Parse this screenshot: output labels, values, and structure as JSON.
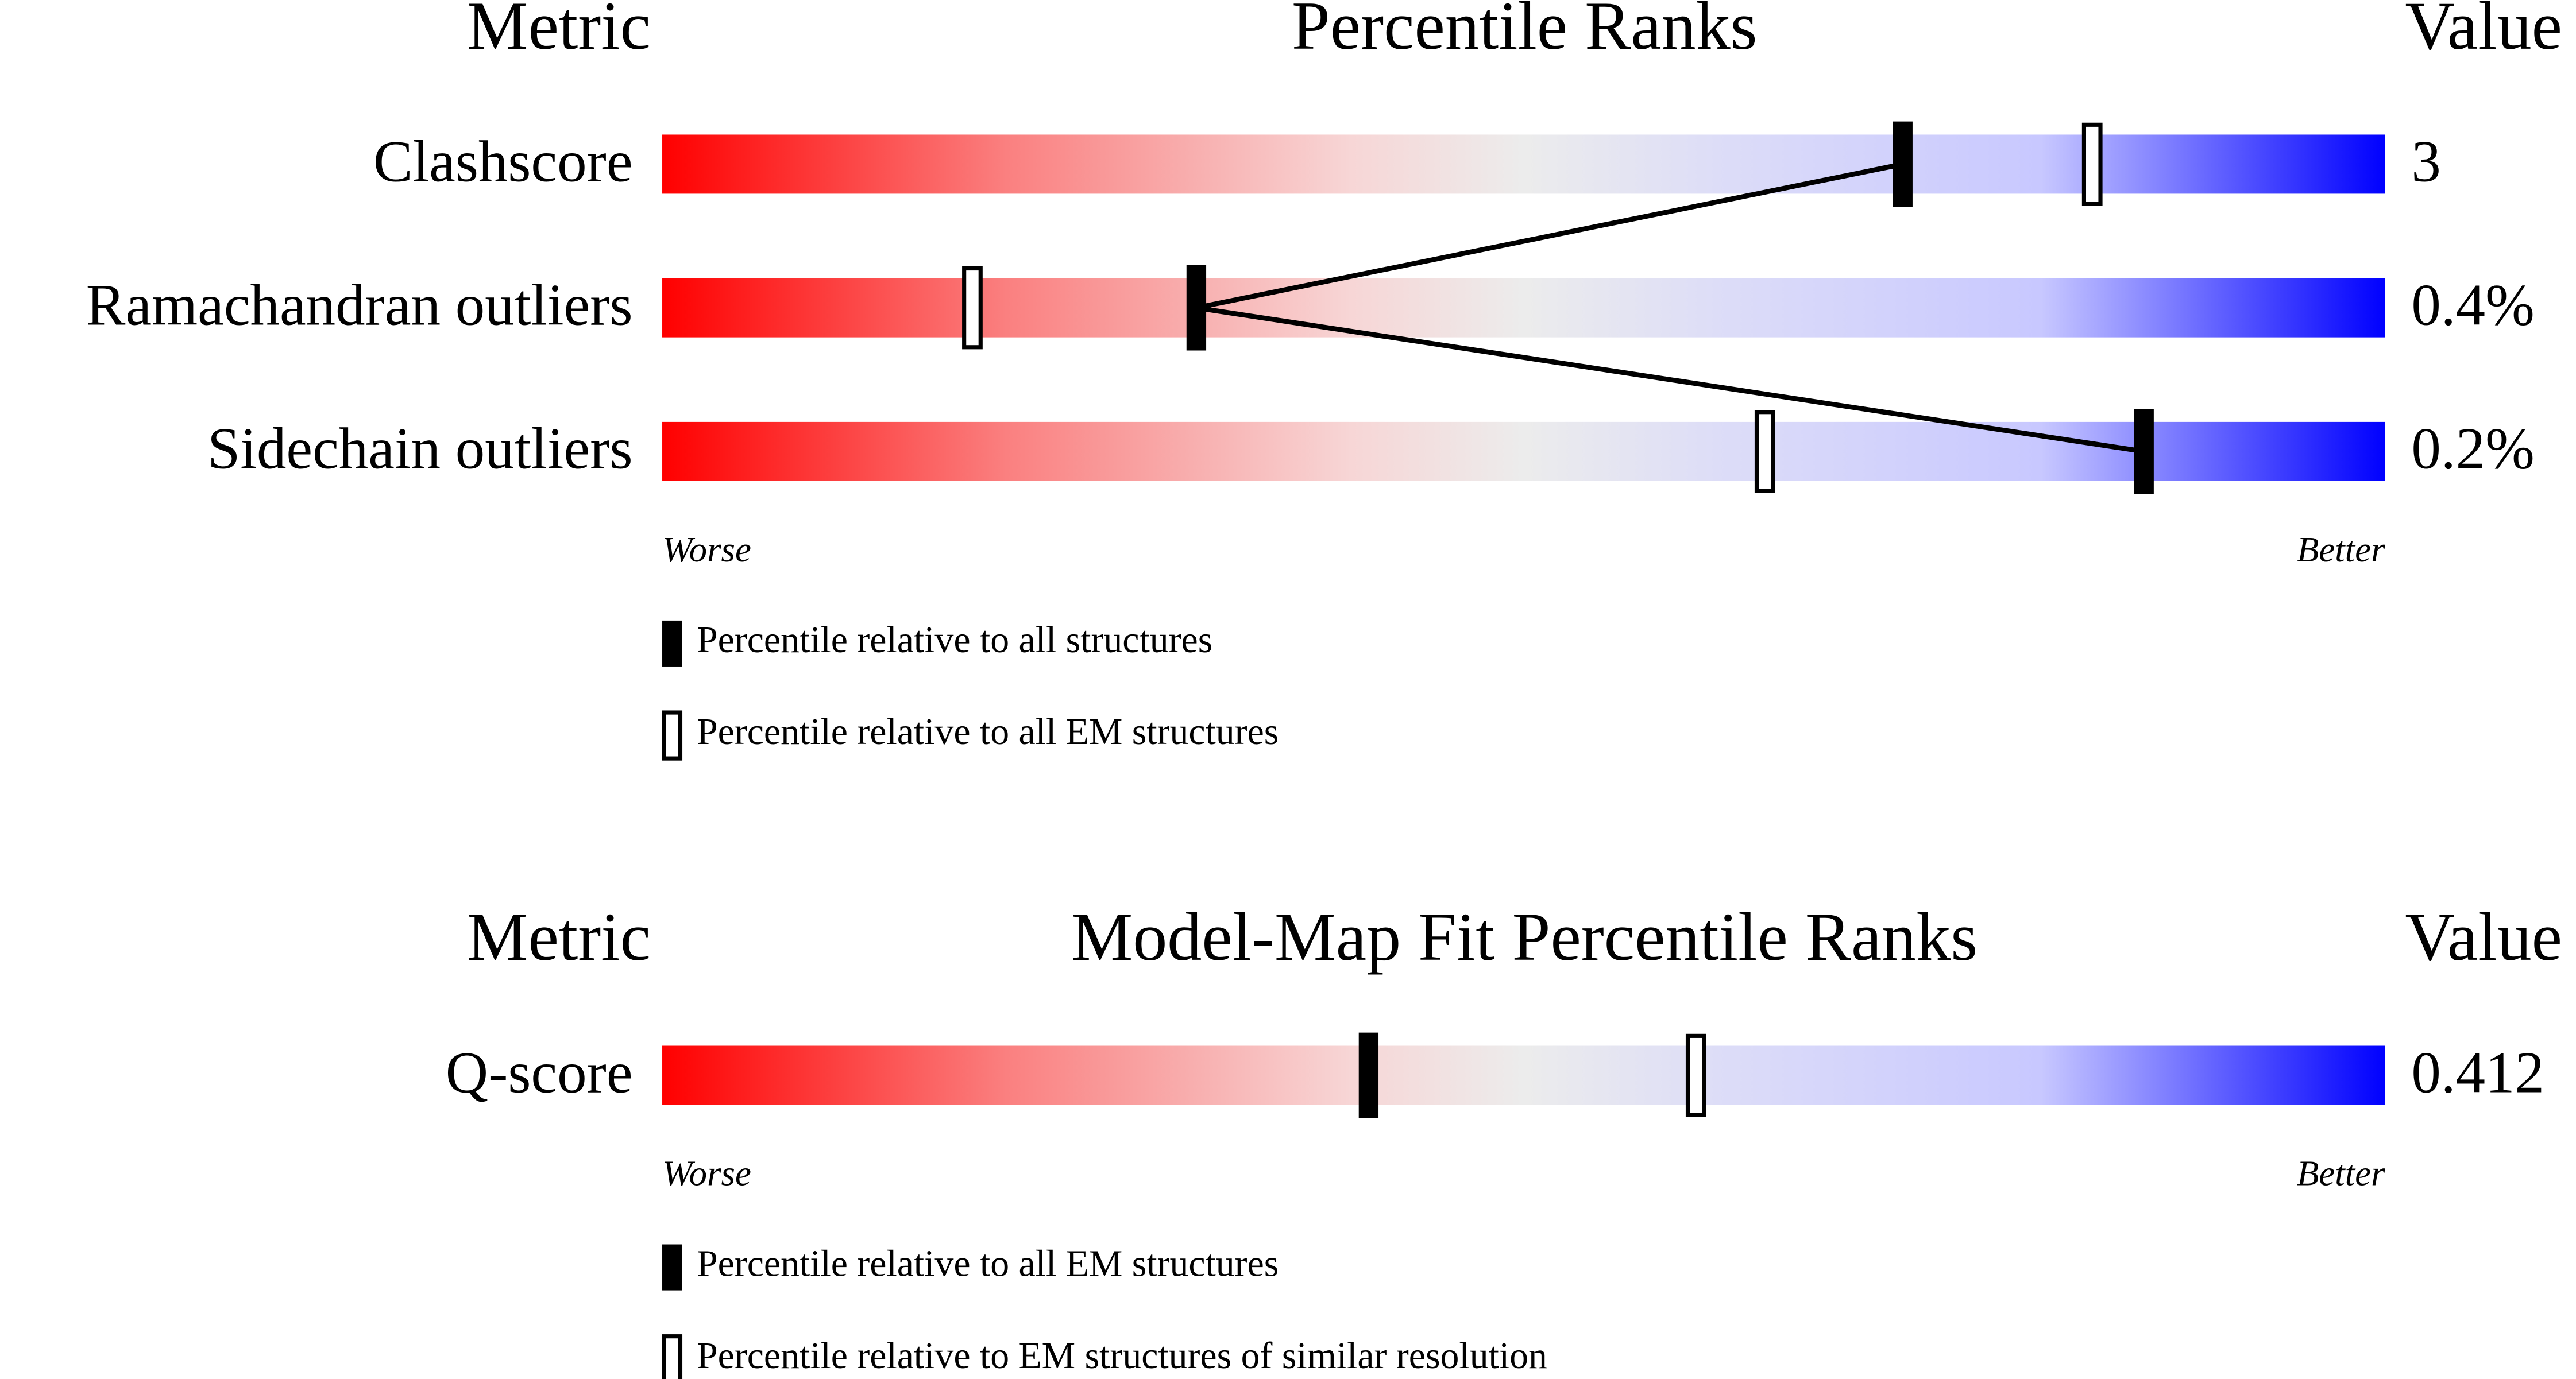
{
  "chart_data": [
    {
      "type": "percentile-ranks",
      "metric_header": "Metric",
      "title": "Percentile Ranks",
      "value_header": "Value",
      "metrics": [
        "Clashscore",
        "Ramachandran outliers",
        "Sidechain outliers"
      ],
      "values": [
        3,
        0.4,
        0.2
      ],
      "value_labels": [
        "3",
        "0.4%",
        "0.2%"
      ],
      "xlim": [
        0,
        100
      ],
      "worse_label": "Worse",
      "better_label": "Better",
      "series": [
        {
          "name": "Percentile relative to all structures",
          "marker": "filled",
          "color": "#000000",
          "values": [
            72,
            31,
            86
          ]
        },
        {
          "name": "Percentile relative to all EM structures",
          "marker": "hollow",
          "color": "#000000",
          "values": [
            83,
            18,
            64
          ]
        }
      ]
    },
    {
      "type": "percentile-ranks",
      "metric_header": "Metric",
      "title": "Model-Map Fit Percentile Ranks",
      "value_header": "Value",
      "metrics": [
        "Q-score"
      ],
      "values": [
        0.412
      ],
      "value_labels": [
        "0.412"
      ],
      "xlim": [
        0,
        100
      ],
      "worse_label": "Worse",
      "better_label": "Better",
      "series": [
        {
          "name": "Percentile relative to all EM structures",
          "marker": "filled",
          "color": "#000000",
          "values": [
            41
          ]
        },
        {
          "name": "Percentile relative to EM structures of similar resolution",
          "marker": "hollow",
          "color": "#000000",
          "values": [
            60
          ]
        }
      ]
    }
  ]
}
